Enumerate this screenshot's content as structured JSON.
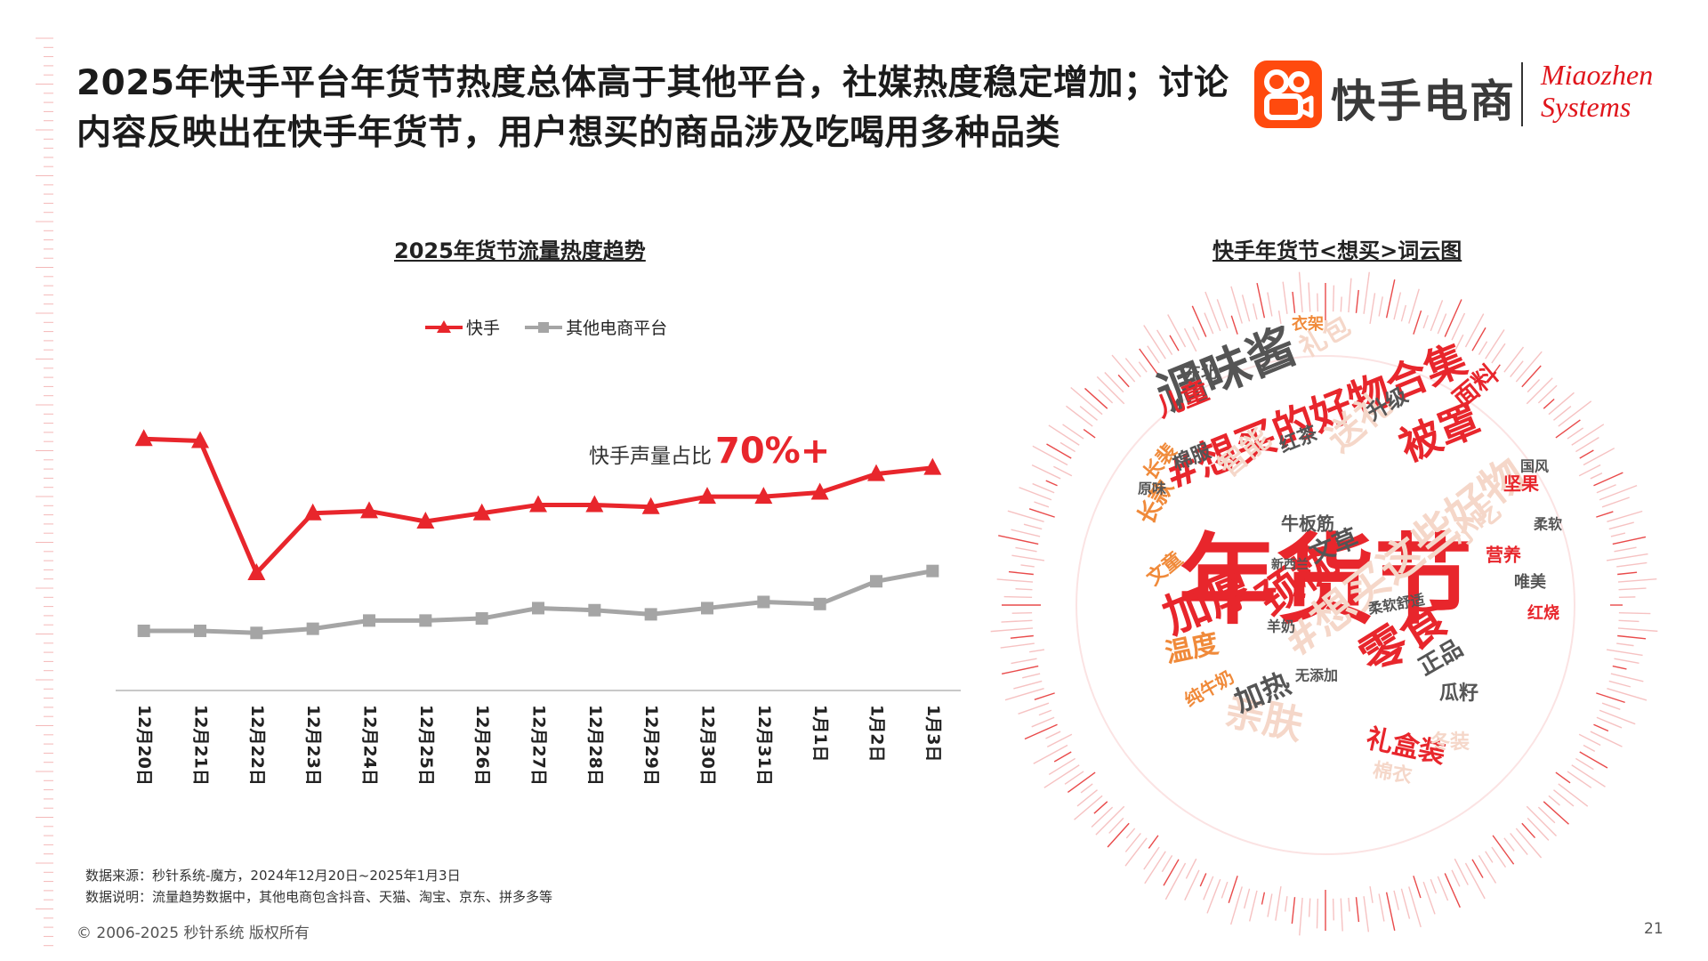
{
  "header": {
    "title": "2025年快手平台年货节热度总体高于其他平台，社媒热度稳定增加；讨论内容反映出在快手年货节，用户想买的商品涉及吃喝用多种品类",
    "brand_kuaishou": "快手电商",
    "brand_miaozhen_line1": "Miaozhen",
    "brand_miaozhen_line2": "Systems"
  },
  "chart_section": {
    "title": "2025年货节流量热度趋势",
    "annotation_prefix": "快手声量占比",
    "annotation_value": "70%+"
  },
  "cloud_section": {
    "title": "快手年货节<想买>词云图"
  },
  "chart_data": {
    "type": "line",
    "title": "2025年货节流量热度趋势",
    "categories": [
      "12月20日",
      "12月21日",
      "12月22日",
      "12月23日",
      "12月24日",
      "12月25日",
      "12月26日",
      "12月27日",
      "12月28日",
      "12月29日",
      "12月30日",
      "12月31日",
      "1月1日",
      "1月2日",
      "1月3日"
    ],
    "series": [
      {
        "name": "快手",
        "values": [
          100,
          99,
          35,
          64,
          65,
          60,
          64,
          68,
          68,
          67,
          72,
          72,
          74,
          83,
          86
        ],
        "color": "#e8262c",
        "marker": "triangle"
      },
      {
        "name": "其他电商平台",
        "values": [
          7,
          7,
          6,
          8,
          12,
          12,
          13,
          18,
          17,
          15,
          18,
          21,
          20,
          31,
          36
        ],
        "color": "#a5a5a5",
        "marker": "square"
      }
    ],
    "ylim": [
      -15,
      110
    ],
    "yaxis_visible": false,
    "grid": false,
    "legend_position": "top"
  },
  "footer": {
    "source_line1": "数据来源：秒针系统-魔方，2024年12月20日~2025年1月3日",
    "source_line2": "数据说明：流量趋势数据中，其他电商包含抖音、天猫、淘宝、京东、拼多多等",
    "copyright": "© 2006-2025 秒针系统 版权所有",
    "page_number": "21"
  },
  "wordcloud_words": [
    {
      "text": "年货节",
      "color": "#e8262c"
    },
    {
      "text": "调味酱",
      "color": "#555555"
    },
    {
      "text": "#想买的好物合集",
      "color": "#e8262c"
    },
    {
      "text": "被罩",
      "color": "#e8262c"
    },
    {
      "text": "儿童",
      "color": "#e8262c"
    },
    {
      "text": "加厚",
      "color": "#e8262c"
    },
    {
      "text": "颈枕",
      "color": "#e8262c"
    },
    {
      "text": "#想买这些好物",
      "color": "#f5d7c9"
    },
    {
      "text": "零食",
      "color": "#e8262c"
    },
    {
      "text": "亲肤",
      "color": "#f5d7c9"
    },
    {
      "text": "加热",
      "color": "#555555"
    },
    {
      "text": "温度",
      "color": "#f08a3a"
    },
    {
      "text": "送礼",
      "color": "#f5d7c9"
    },
    {
      "text": "智能",
      "color": "#f5d7c9"
    },
    {
      "text": "礼盒装",
      "color": "#e8262c"
    },
    {
      "text": "小吃",
      "color": "#f5d7c9"
    },
    {
      "text": "文草",
      "color": "#555555"
    },
    {
      "text": "面料",
      "color": "#e8262c"
    },
    {
      "text": "升级",
      "color": "#555555"
    },
    {
      "text": "红茶",
      "color": "#555555"
    },
    {
      "text": "棉服",
      "color": "#555555"
    },
    {
      "text": "长裴",
      "color": "#f08a3a"
    },
    {
      "text": "长款",
      "color": "#f08a3a"
    },
    {
      "text": "正品",
      "color": "#555555"
    },
    {
      "text": "瓜籽",
      "color": "#555555"
    },
    {
      "text": "纯牛奶",
      "color": "#f08a3a"
    },
    {
      "text": "牛板筋",
      "color": "#555555"
    },
    {
      "text": "营养",
      "color": "#e8262c"
    },
    {
      "text": "唯美",
      "color": "#555555"
    },
    {
      "text": "坚果",
      "color": "#e8262c"
    },
    {
      "text": "东北",
      "color": "#555555"
    },
    {
      "text": "礼包",
      "color": "#f5d7c9"
    },
    {
      "text": "衣架",
      "color": "#f08a3a"
    },
    {
      "text": "文童",
      "color": "#f08a3a"
    },
    {
      "text": "冬装",
      "color": "#f5d7c9"
    },
    {
      "text": "棉衣",
      "color": "#f5d7c9"
    },
    {
      "text": "原味",
      "color": "#555555"
    },
    {
      "text": "羊奶",
      "color": "#555555"
    },
    {
      "text": "柔软舒适",
      "color": "#555555"
    },
    {
      "text": "无添加",
      "color": "#555555"
    },
    {
      "text": "新西兰",
      "color": "#555555"
    },
    {
      "text": "红烧",
      "color": "#e8262c"
    },
    {
      "text": "柔软",
      "color": "#555555"
    },
    {
      "text": "国风",
      "color": "#555555"
    }
  ]
}
